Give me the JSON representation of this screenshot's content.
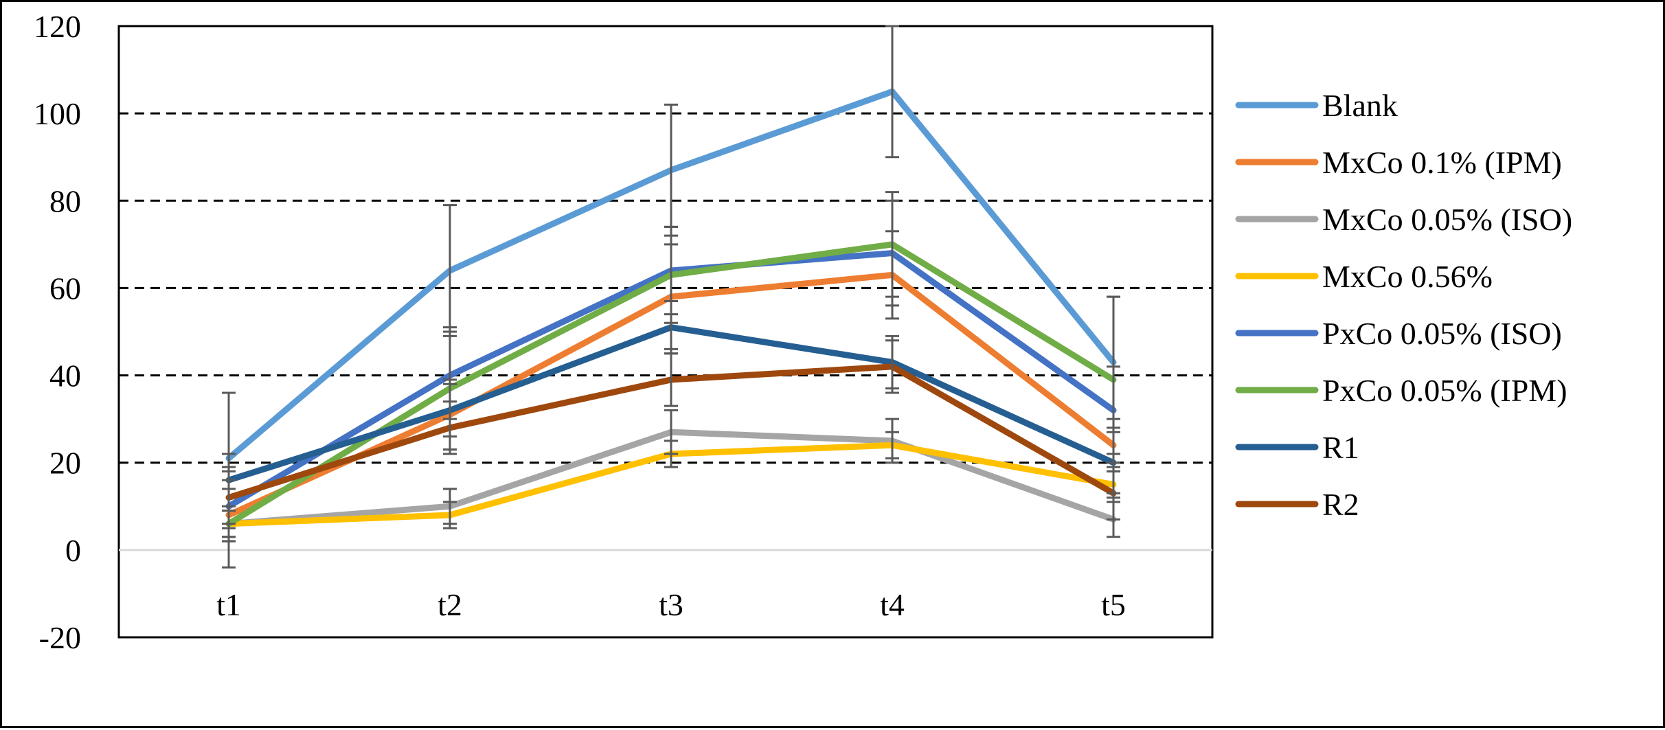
{
  "chart_data": {
    "type": "line",
    "title": "",
    "xlabel": "",
    "ylabel": "",
    "categories": [
      "t1",
      "t2",
      "t3",
      "t4",
      "t5"
    ],
    "ylim": [
      -20,
      120
    ],
    "yticks": [
      -20,
      0,
      20,
      40,
      60,
      80,
      100,
      120
    ],
    "grid": "dashed horizontal at 20, 40, 60, 80, 100",
    "legend_position": "right",
    "series": [
      {
        "name": "Blank",
        "color": "#5B9BD5",
        "values": [
          21,
          64,
          87,
          105,
          43
        ],
        "errors": [
          15,
          15,
          15,
          15,
          15
        ]
      },
      {
        "name": "MxCo 0.1% (IPM)",
        "color": "#ED7D31",
        "values": [
          8,
          31,
          58,
          63,
          24
        ],
        "errors": [
          6,
          8,
          12,
          10,
          6
        ]
      },
      {
        "name": "MxCo 0.05% (ISO)",
        "color": "#A5A5A5",
        "values": [
          6,
          10,
          27,
          25,
          7
        ],
        "errors": [
          3,
          4,
          5,
          5,
          4
        ]
      },
      {
        "name": "MxCo 0.56%",
        "color": "#FFC000",
        "values": [
          6,
          8,
          22,
          24,
          15
        ],
        "errors": [
          3,
          3,
          3,
          3,
          3
        ]
      },
      {
        "name": "PxCo 0.05% (ISO)",
        "color": "#4472C4",
        "values": [
          10,
          40,
          64,
          68,
          32
        ],
        "errors": [
          8,
          10,
          10,
          12,
          10
        ]
      },
      {
        "name": "PxCo 0.05% (IPM)",
        "color": "#70AD47",
        "values": [
          6,
          37,
          63,
          70,
          39
        ],
        "errors": [
          10,
          14,
          11,
          12,
          19
        ]
      },
      {
        "name": "R1",
        "color": "#255E91",
        "values": [
          16,
          32,
          51,
          43,
          20
        ],
        "errors": [
          6,
          6,
          6,
          6,
          7
        ]
      },
      {
        "name": "R2",
        "color": "#9E480E",
        "values": [
          12,
          28,
          39,
          42,
          13
        ],
        "errors": [
          7,
          6,
          6,
          6,
          6
        ]
      }
    ]
  }
}
